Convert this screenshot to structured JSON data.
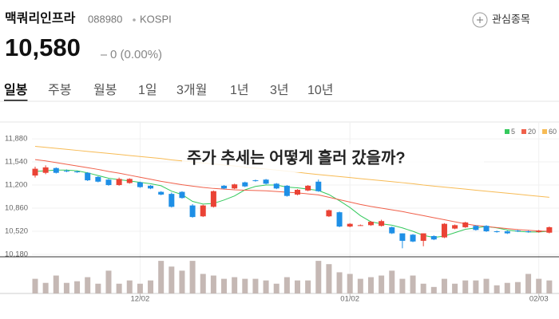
{
  "header": {
    "name": "맥쿼리인프라",
    "code": "088980",
    "market": "KOSPI",
    "watch": "관심종목",
    "price": "10,580",
    "change": "0 (0.00%)"
  },
  "tabs": [
    "일봉",
    "주봉",
    "월봉",
    "1일",
    "3개월",
    "1년",
    "3년",
    "10년"
  ],
  "active_tab": 0,
  "chart_data": {
    "type": "candlestick",
    "overlay_title": "주가 추세는 어떻게 흘러 갔을까?",
    "categories": [
      null,
      null,
      null,
      null,
      null,
      null,
      null,
      null,
      null,
      null,
      "12/02",
      null,
      null,
      null,
      null,
      null,
      null,
      null,
      null,
      null,
      null,
      null,
      null,
      null,
      null,
      null,
      null,
      null,
      null,
      null,
      "01/02",
      null,
      null,
      null,
      null,
      null,
      null,
      null,
      null,
      null,
      null,
      null,
      null,
      null,
      null,
      null,
      null,
      null,
      "02/03",
      null
    ],
    "ylim": [
      10145,
      12045
    ],
    "yticks": [
      {
        "value": 11880,
        "label": "11,880"
      },
      {
        "value": 11540,
        "label": "11,540"
      },
      {
        "value": 11200,
        "label": "11,200"
      },
      {
        "value": 10860,
        "label": "10,860"
      },
      {
        "value": 10520,
        "label": "10,520"
      },
      {
        "value": 10180,
        "label": "10,180"
      }
    ],
    "up_color": "#ea4335",
    "down_color": "#1e8fe6",
    "open": [
      11340,
      11380,
      11450,
      11410,
      11400,
      11380,
      11320,
      11280,
      11200,
      11230,
      11240,
      11190,
      11100,
      11070,
      11100,
      10900,
      10740,
      10880,
      11190,
      11150,
      11240,
      11270,
      11280,
      11220,
      11190,
      11060,
      11120,
      11250,
      10740,
      10800,
      10590,
      10600,
      10610,
      10600,
      10580,
      10490,
      10470,
      10380,
      10450,
      10430,
      10560,
      10580,
      10600,
      10600,
      10520,
      10520,
      10530,
      10520,
      10510,
      10500
    ],
    "high": [
      11470,
      11490,
      11460,
      11430,
      11410,
      11390,
      11330,
      11290,
      11310,
      11300,
      11250,
      11200,
      11110,
      11090,
      11110,
      10920,
      10910,
      11120,
      11200,
      11220,
      11250,
      11280,
      11290,
      11230,
      11200,
      11140,
      11200,
      11280,
      10840,
      10810,
      10640,
      10620,
      10670,
      10690,
      10590,
      10490,
      10480,
      10490,
      10460,
      10640,
      10620,
      10660,
      10610,
      10610,
      10530,
      10530,
      10540,
      10530,
      10540,
      10590
    ],
    "low": [
      11310,
      11360,
      11370,
      11390,
      11380,
      11260,
      11240,
      11190,
      11190,
      11220,
      11160,
      11140,
      11050,
      10870,
      11000,
      10720,
      10730,
      10870,
      11140,
      11140,
      11170,
      11250,
      11210,
      11140,
      11030,
      11050,
      11110,
      11100,
      10730,
      10580,
      10580,
      10600,
      10600,
      10590,
      10480,
      10270,
      10360,
      10300,
      10390,
      10420,
      10550,
      10570,
      10530,
      10510,
      10500,
      10480,
      10510,
      10500,
      10500,
      10490
    ],
    "close": [
      11440,
      11460,
      11380,
      11400,
      11390,
      11270,
      11250,
      11200,
      11290,
      11290,
      11170,
      11150,
      11060,
      10880,
      11010,
      10730,
      10900,
      11110,
      11150,
      11210,
      11180,
      11260,
      11220,
      11150,
      11040,
      11130,
      11190,
      11110,
      10830,
      10590,
      10630,
      10610,
      10660,
      10670,
      10490,
      10380,
      10370,
      10490,
      10400,
      10630,
      10610,
      10650,
      10540,
      10520,
      10510,
      10490,
      10520,
      10510,
      10530,
      10580
    ],
    "series": [
      {
        "name": "5",
        "color": "#35c95d",
        "values": [
          11400,
          11410,
          11420,
          11420,
          11410,
          11380,
          11340,
          11300,
          11280,
          11260,
          11240,
          11220,
          11190,
          11110,
          11060,
          10960,
          10920,
          10930,
          10980,
          11040,
          11130,
          11180,
          11200,
          11200,
          11170,
          11160,
          11140,
          11120,
          11060,
          10970,
          10870,
          10750,
          10660,
          10630,
          10610,
          10570,
          10520,
          10460,
          10430,
          10450,
          10500,
          10550,
          10570,
          10590,
          10570,
          10540,
          10520,
          10510,
          10510,
          10520
        ]
      },
      {
        "name": "20",
        "color": "#f0604a",
        "values": [
          11575,
          11555,
          11530,
          11505,
          11480,
          11455,
          11430,
          11400,
          11375,
          11345,
          11315,
          11285,
          11255,
          11230,
          11205,
          11185,
          11165,
          11150,
          11140,
          11130,
          11125,
          11120,
          11115,
          11105,
          11095,
          11085,
          11070,
          11055,
          11020,
          10985,
          10950,
          10915,
          10885,
          10860,
          10835,
          10810,
          10780,
          10750,
          10720,
          10690,
          10660,
          10630,
          10605,
          10590,
          10575,
          10560,
          10545,
          10535,
          10525,
          10520
        ]
      },
      {
        "name": "60",
        "color": "#f7bb55",
        "values": [
          11770,
          11755,
          11740,
          11725,
          11710,
          11695,
          11680,
          11665,
          11650,
          11635,
          11620,
          11605,
          11590,
          11570,
          11555,
          11540,
          11525,
          11510,
          11495,
          11480,
          11465,
          11450,
          11435,
          11420,
          11405,
          11390,
          11370,
          11355,
          11340,
          11325,
          11310,
          11295,
          11280,
          11265,
          11250,
          11235,
          11220,
          11200,
          11185,
          11170,
          11155,
          11140,
          11125,
          11110,
          11095,
          11080,
          11065,
          11050,
          11035,
          11020
        ]
      }
    ],
    "volume": [
      18,
      13,
      22,
      13,
      15,
      20,
      12,
      28,
      12,
      16,
      12,
      16,
      40,
      33,
      28,
      40,
      24,
      22,
      18,
      20,
      18,
      18,
      16,
      12,
      20,
      16,
      16,
      40,
      36,
      26,
      24,
      18,
      20,
      22,
      28,
      18,
      22,
      12,
      8,
      18,
      12,
      16,
      16,
      18,
      10,
      13,
      14,
      24,
      18,
      16
    ],
    "volume_color": "#c5b8b4",
    "vlim": [
      0,
      45
    ],
    "grid": true
  }
}
